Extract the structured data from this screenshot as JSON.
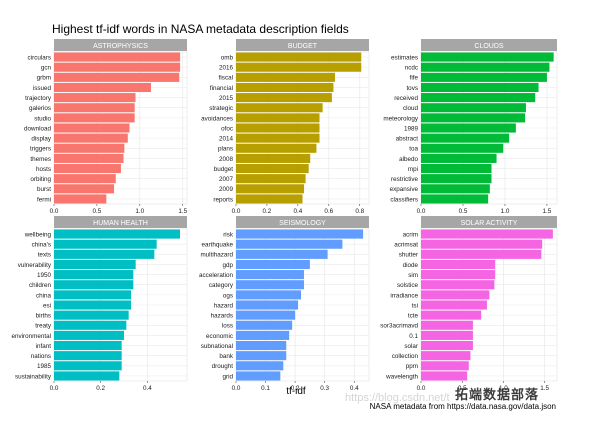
{
  "title": "Highest tf-idf words in NASA metadata description fields",
  "xlabel": "tf-idf",
  "caption": "NASA metadata from https://data.nasa.gov/data.json",
  "watermark": "拓端数据部落",
  "watermark_url": "https://blog.csdn.net/t",
  "colors": {
    "ASTROPHYSICS": "#F8766D",
    "BUDGET": "#B79F00",
    "CLOUDS": "#00BA38",
    "HUMAN HEALTH": "#00BFC4",
    "SEISMOLOGY": "#619CFF",
    "SOLAR ACTIVITY": "#F564E3"
  },
  "chart_data": {
    "type": "bar",
    "orientation": "horizontal",
    "facet_layout": "3x2",
    "grid": true,
    "panels": [
      {
        "name": "ASTROPHYSICS",
        "xlim": [
          0,
          1.55
        ],
        "ticks": [
          "0.0",
          "0.5",
          "1.0",
          "1.5"
        ],
        "tick_values": [
          0,
          0.5,
          1.0,
          1.5
        ],
        "categories": [
          "circulars",
          "gcn",
          "grbm",
          "issued",
          "trajectory",
          "galerios",
          "studio",
          "download",
          "display",
          "triggers",
          "themes",
          "hosts",
          "orbiting",
          "burst",
          "fermi"
        ],
        "values": [
          1.47,
          1.47,
          1.46,
          1.13,
          0.95,
          0.94,
          0.94,
          0.88,
          0.86,
          0.82,
          0.81,
          0.78,
          0.72,
          0.7,
          0.61
        ]
      },
      {
        "name": "BUDGET",
        "xlim": [
          0,
          0.86
        ],
        "ticks": [
          "0.0",
          "0.2",
          "0.4",
          "0.6",
          "0.8"
        ],
        "tick_values": [
          0,
          0.2,
          0.4,
          0.6,
          0.8
        ],
        "categories": [
          "omb",
          "2016",
          "fiscal",
          "financial",
          "2015",
          "strategic",
          "avoidances",
          "ofoc",
          "2014",
          "plans",
          "2008",
          "budget",
          "2007",
          "2009",
          "reports"
        ],
        "values": [
          0.81,
          0.81,
          0.64,
          0.63,
          0.62,
          0.56,
          0.54,
          0.54,
          0.54,
          0.52,
          0.48,
          0.47,
          0.45,
          0.44,
          0.43
        ]
      },
      {
        "name": "CLOUDS",
        "xlim": [
          0,
          1.62
        ],
        "ticks": [
          "0.0",
          "0.5",
          "1.0",
          "1.5"
        ],
        "tick_values": [
          0,
          0.5,
          1.0,
          1.5
        ],
        "categories": [
          "estimates",
          "ncdc",
          "fife",
          "tovs",
          "received",
          "cloud",
          "meteorology",
          "1989",
          "abstract",
          "toa",
          "albedo",
          "mpi",
          "restrictive",
          "expansive",
          "classifiers"
        ],
        "values": [
          1.58,
          1.53,
          1.5,
          1.4,
          1.36,
          1.25,
          1.24,
          1.13,
          1.05,
          0.98,
          0.9,
          0.84,
          0.84,
          0.82,
          0.8
        ]
      },
      {
        "name": "HUMAN HEALTH",
        "xlim": [
          0,
          0.57
        ],
        "ticks": [
          "0.0",
          "0.2",
          "0.4"
        ],
        "tick_values": [
          0,
          0.2,
          0.4
        ],
        "categories": [
          "wellbeing",
          "china's",
          "texts",
          "vulnerability",
          "1950",
          "children",
          "china",
          "esi",
          "births",
          "treaty",
          "environmental",
          "infant",
          "nations",
          "1985",
          "sustainability"
        ],
        "values": [
          0.54,
          0.44,
          0.43,
          0.35,
          0.34,
          0.34,
          0.33,
          0.33,
          0.32,
          0.31,
          0.3,
          0.29,
          0.29,
          0.29,
          0.28
        ]
      },
      {
        "name": "SEISMOLOGY",
        "xlim": [
          0,
          0.45
        ],
        "ticks": [
          "0.0",
          "0.1",
          "0.2",
          "0.3",
          "0.4"
        ],
        "tick_values": [
          0,
          0.1,
          0.2,
          0.3,
          0.4
        ],
        "categories": [
          "risk",
          "earthquake",
          "multihazard",
          "gdp",
          "acceleration",
          "category",
          "ogs",
          "hazard",
          "hazards",
          "loss",
          "economic",
          "subnational",
          "bank",
          "drought",
          "grid"
        ],
        "values": [
          0.43,
          0.36,
          0.31,
          0.25,
          0.23,
          0.23,
          0.22,
          0.21,
          0.2,
          0.19,
          0.18,
          0.17,
          0.17,
          0.16,
          0.15
        ]
      },
      {
        "name": "SOLAR ACTIVITY",
        "xlim": [
          0,
          1.65
        ],
        "ticks": [
          "0.0",
          "0.5",
          "1.0",
          "1.5"
        ],
        "tick_values": [
          0,
          0.5,
          1.0,
          1.5
        ],
        "categories": [
          "acrim",
          "acrimsat",
          "shutter",
          "diode",
          "sim",
          "solstice",
          "irradiance",
          "tsi",
          "tcte",
          "sor3acrimavd",
          "0.1",
          "solar",
          "collection",
          "ppm",
          "wavelength"
        ],
        "values": [
          1.6,
          1.47,
          1.46,
          0.9,
          0.9,
          0.89,
          0.83,
          0.8,
          0.73,
          0.63,
          0.63,
          0.63,
          0.6,
          0.58,
          0.56
        ]
      }
    ]
  }
}
